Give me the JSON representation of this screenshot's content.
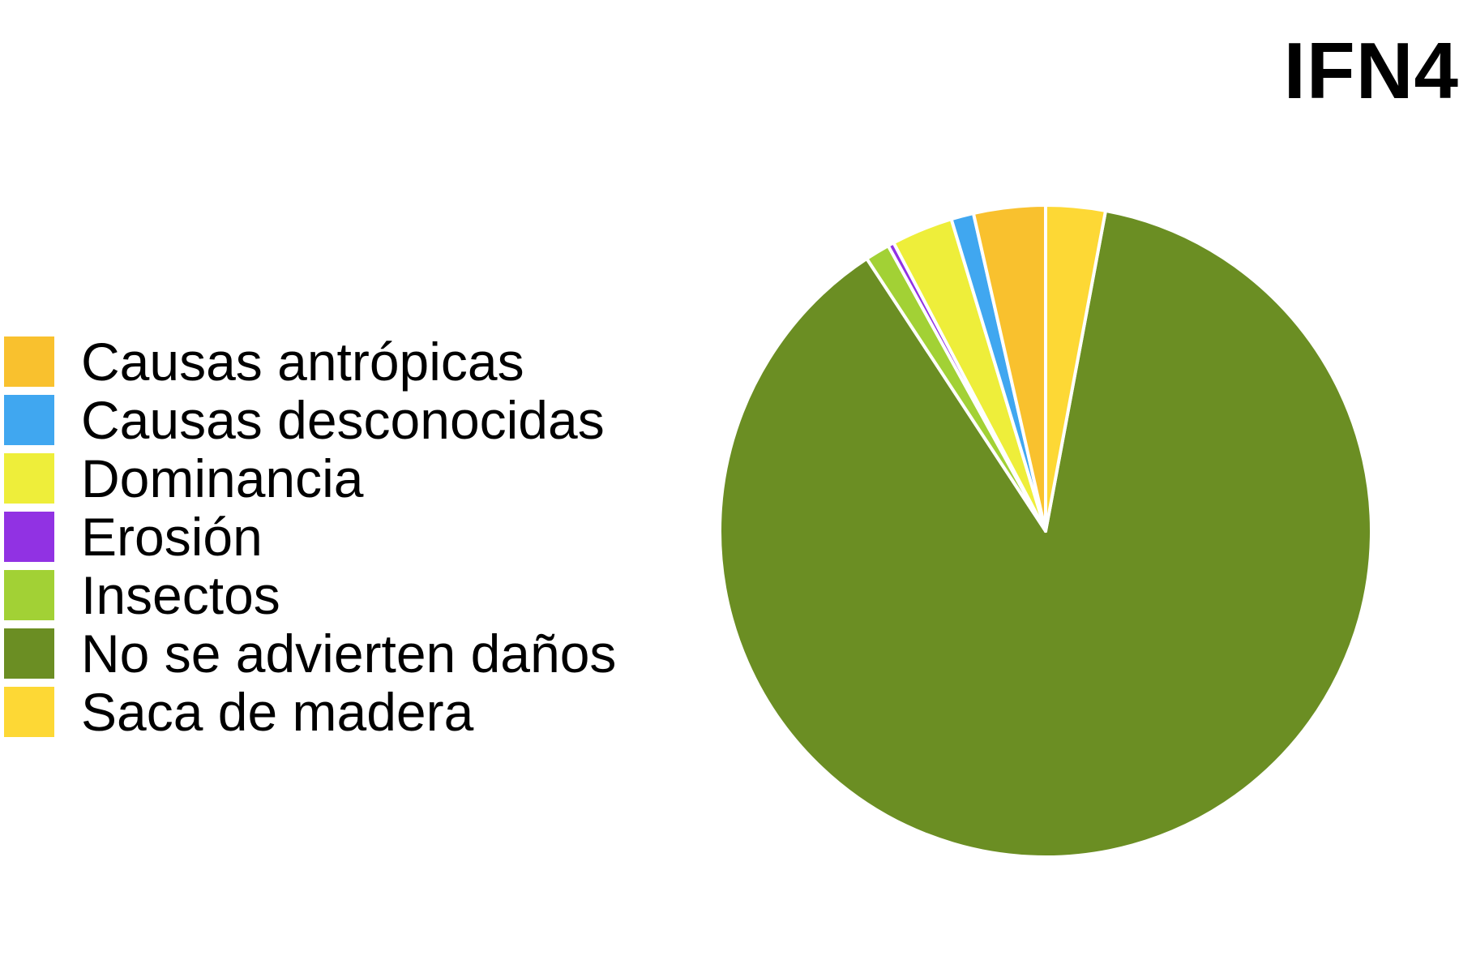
{
  "chart_data": {
    "type": "pie",
    "title": "IFN4",
    "legend_position": "left",
    "slices": [
      {
        "label": "No se advierten daños",
        "value": 86.4,
        "color": "#6b8e23"
      },
      {
        "label": "Insectos",
        "value": 1.2,
        "color": "#a2d135"
      },
      {
        "label": "Erosión",
        "value": 0.3,
        "color": "#9132e3"
      },
      {
        "label": "Dominancia",
        "value": 3.0,
        "color": "#eeee3a"
      },
      {
        "label": "Causas desconocidas",
        "value": 1.1,
        "color": "#40a7f0"
      },
      {
        "label": "Causas antrópicas",
        "value": 3.5,
        "color": "#f9c12e"
      },
      {
        "label": "Saca de madera",
        "value": 2.9,
        "color": "#fdd835"
      }
    ],
    "legend": [
      {
        "label": "Causas antrópicas",
        "color": "#f9c12e"
      },
      {
        "label": "Causas desconocidas",
        "color": "#40a7f0"
      },
      {
        "label": "Dominancia",
        "color": "#eeee3a"
      },
      {
        "label": "Erosión",
        "color": "#9132e3"
      },
      {
        "label": "Insectos",
        "color": "#a2d135"
      },
      {
        "label": "No se advierten daños",
        "color": "#6b8e23"
      },
      {
        "label": "Saca de madera",
        "color": "#fdd835"
      }
    ]
  }
}
